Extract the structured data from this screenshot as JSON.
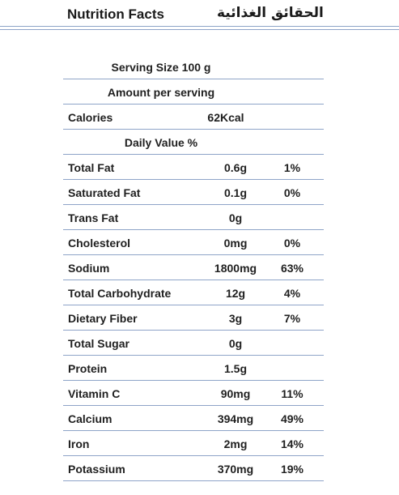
{
  "header": {
    "title_en": "Nutrition Facts",
    "title_ar": "الحقائق الغذائية"
  },
  "serving_size": "Serving Size 100 g",
  "amount_per_serving": "Amount per serving",
  "calories": {
    "label": "Calories",
    "value": "62Kcal"
  },
  "daily_value_label": "Daily Value %",
  "nutrients": [
    {
      "name": "Total Fat",
      "amount": "0.6g",
      "dv": "1%"
    },
    {
      "name": "Saturated Fat",
      "amount": "0.1g",
      "dv": "0%"
    },
    {
      "name": "Trans Fat",
      "amount": "0g",
      "dv": ""
    },
    {
      "name": "Cholesterol",
      "amount": "0mg",
      "dv": "0%"
    },
    {
      "name": "Sodium",
      "amount": "1800mg",
      "dv": "63%"
    },
    {
      "name": "Total Carbohydrate",
      "amount": "12g",
      "dv": "4%"
    },
    {
      "name": "Dietary Fiber",
      "amount": "3g",
      "dv": "7%"
    },
    {
      "name": "Total Sugar",
      "amount": "0g",
      "dv": ""
    },
    {
      "name": "Protein",
      "amount": "1.5g",
      "dv": ""
    },
    {
      "name": "Vitamin C",
      "amount": "90mg",
      "dv": "11%"
    },
    {
      "name": "Calcium",
      "amount": "394mg",
      "dv": "49%"
    },
    {
      "name": "Iron",
      "amount": "2mg",
      "dv": "14%"
    },
    {
      "name": "Potassium",
      "amount": "370mg",
      "dv": "19%"
    }
  ]
}
